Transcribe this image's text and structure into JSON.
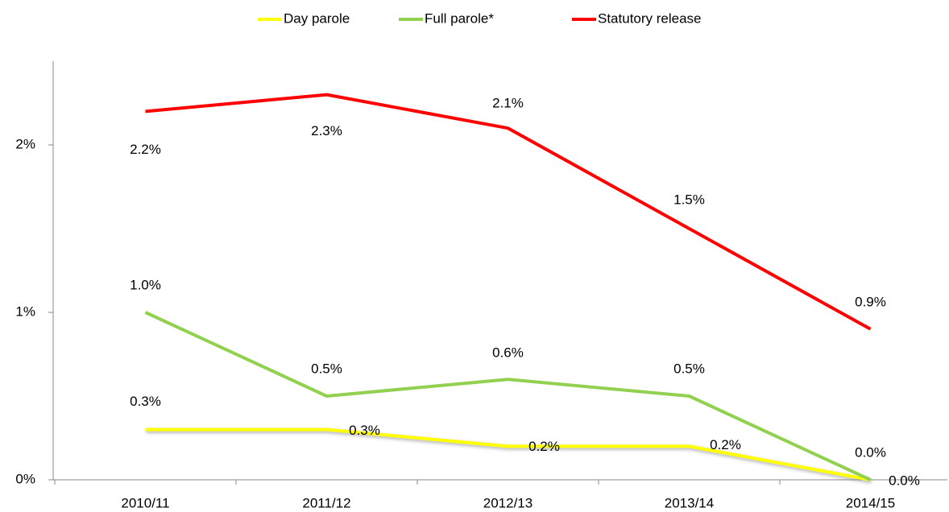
{
  "chart_data": {
    "type": "line",
    "categories": [
      "2010/11",
      "2011/12",
      "2012/13",
      "2013/14",
      "2014/15"
    ],
    "series": [
      {
        "name": "Day parole",
        "color": "#ffff00",
        "values": [
          0.3,
          0.3,
          0.2,
          0.2,
          0.0
        ],
        "value_labels": [
          "0.3%",
          "0.3%",
          "0.2%",
          "0.2%",
          "0.0%"
        ]
      },
      {
        "name": "Full parole*",
        "color": "#92d050",
        "values": [
          1.0,
          0.5,
          0.6,
          0.5,
          0.0
        ],
        "value_labels": [
          "1.0%",
          "0.5%",
          "0.6%",
          "0.5%",
          "0.0%"
        ]
      },
      {
        "name": "Statutory release",
        "color": "#ff0000",
        "values": [
          2.2,
          2.3,
          2.1,
          1.5,
          0.9
        ],
        "value_labels": [
          "2.2%",
          "2.3%",
          "2.1%",
          "1.5%",
          "0.9%"
        ]
      }
    ],
    "ylim": [
      0,
      2.5
    ],
    "yticks": [
      {
        "value": 0,
        "label": "0%"
      },
      {
        "value": 1,
        "label": "1%"
      },
      {
        "value": 2,
        "label": "2%"
      }
    ],
    "legend": "top"
  }
}
